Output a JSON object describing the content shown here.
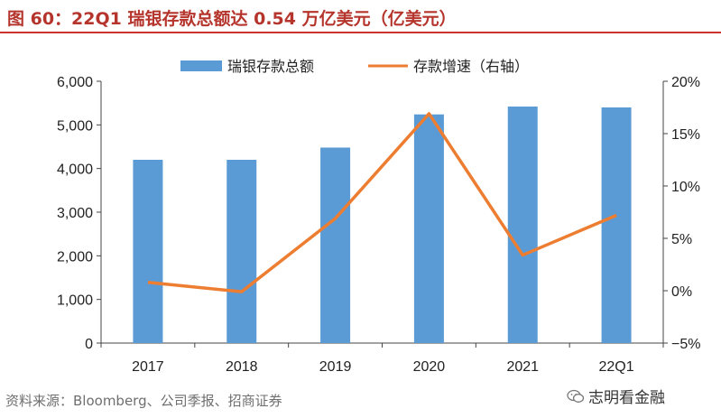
{
  "header": {
    "title": "图 60：22Q1 瑞银存款总额达 0.54 万亿美元（亿美元）"
  },
  "footer": {
    "source": "资料来源：Bloomberg、公司季报、招商证券",
    "watermark": "志明看金融",
    "watermark_icon": "wechat-icon"
  },
  "colors": {
    "bar": "#5b9bd5",
    "line": "#ed7d31",
    "title": "#b5342c"
  },
  "chart_data": {
    "type": "bar",
    "categories": [
      "2017",
      "2018",
      "2019",
      "2020",
      "2021",
      "22Q1"
    ],
    "series": [
      {
        "name": "瑞银存款总额",
        "type": "bar",
        "axis": "left",
        "values": [
          4200,
          4200,
          4480,
          5240,
          5420,
          5400
        ]
      },
      {
        "name": "存款增速（右轴）",
        "type": "line",
        "axis": "right",
        "values": [
          0.8,
          -0.1,
          6.9,
          16.9,
          3.4,
          7.2
        ]
      }
    ],
    "ylim_left": [
      0,
      6000
    ],
    "yticks_left": [
      "0",
      "1,000",
      "2,000",
      "3,000",
      "4,000",
      "5,000",
      "6,000"
    ],
    "ylim_right": [
      -5,
      20
    ],
    "yticks_right": [
      "−5%",
      "0%",
      "5%",
      "10%",
      "15%",
      "20%"
    ],
    "legend_position": "top-center",
    "grid": false
  }
}
